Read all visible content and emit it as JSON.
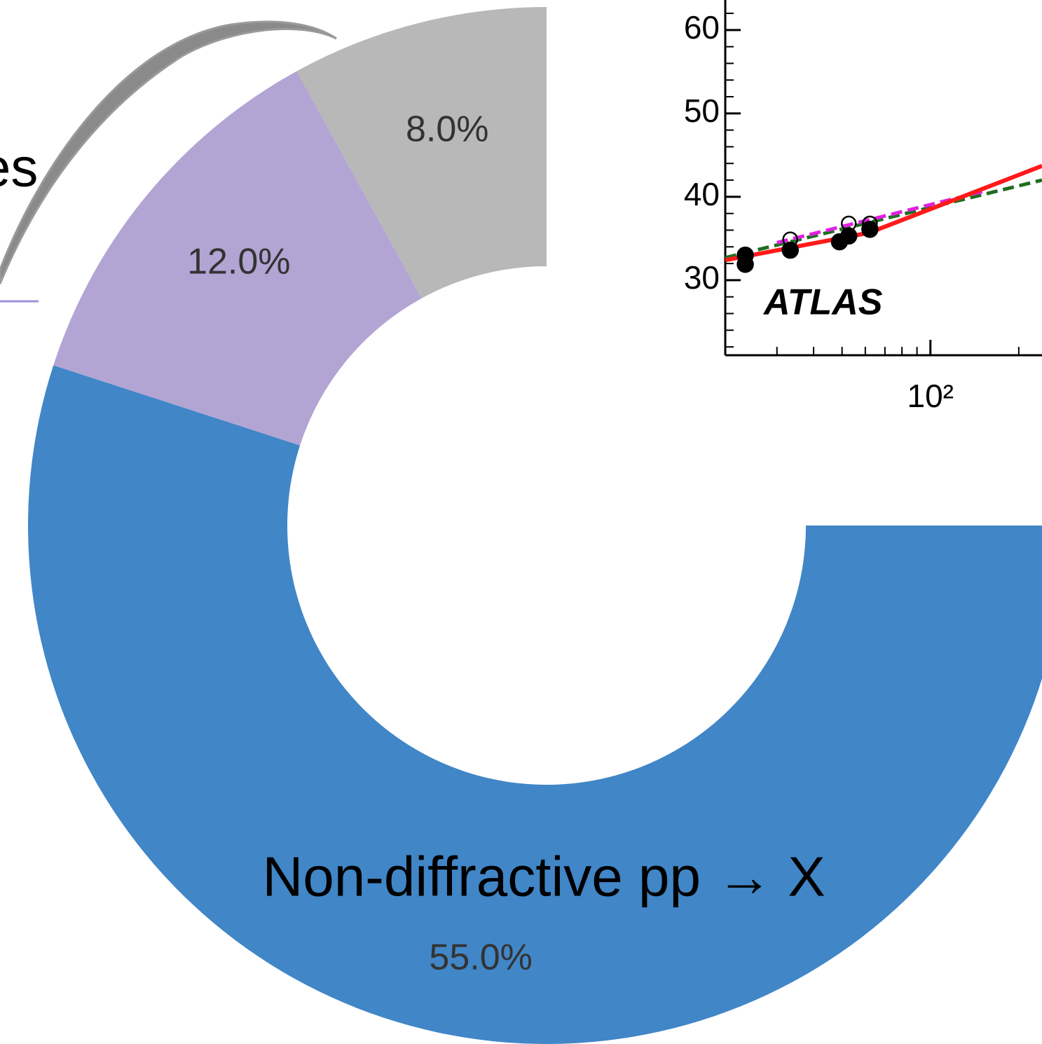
{
  "slide_text": "es",
  "chart_data": [
    {
      "type": "donut",
      "categories": [
        "Non-diffractive pp → X",
        null,
        null
      ],
      "values": [
        55,
        12,
        8
      ],
      "value_labels": [
        "55.0%",
        "12.0%",
        "8.0%"
      ],
      "colors": [
        "#4186c7",
        "#b2a5d4",
        "#b8b8b8"
      ]
    },
    {
      "type": "line",
      "annotation": "ATLAS",
      "xscale": "log",
      "xlim": [
        20,
        240
      ],
      "ylim": [
        21,
        63.6
      ],
      "xticks": [
        {
          "value": 100,
          "label": "10²"
        }
      ],
      "xminorticks": [
        30,
        40,
        50,
        60,
        70,
        80,
        90,
        200
      ],
      "yticks": [
        30,
        40,
        50,
        60
      ],
      "yminorticks": [
        22,
        24,
        26,
        28,
        32,
        34,
        36,
        38,
        42,
        44,
        46,
        48,
        52,
        54,
        56,
        58,
        62
      ],
      "series": [
        {
          "color": "#1f6e1f",
          "dash": true,
          "marker": null,
          "x": [
            20,
            240
          ],
          "y": [
            32.7,
            42.0
          ]
        },
        {
          "color": "#e020e0",
          "dash": true,
          "marker": null,
          "x": [
            30,
            150
          ],
          "y": [
            34.5,
            40.6
          ]
        },
        {
          "color": "#ff1a1a",
          "dash": false,
          "marker": null,
          "x": [
            20,
            62,
            240
          ],
          "y": [
            32.4,
            35.7,
            43.7
          ]
        },
        {
          "color": "#000000",
          "dash": false,
          "marker": "open",
          "x": [
            33.3,
            52.7,
            62.2
          ],
          "y": [
            34.9,
            36.8,
            36.8
          ]
        },
        {
          "color": "#000000",
          "dash": false,
          "marker": "filled",
          "x": [
            23.4,
            23.4,
            33.3,
            49,
            52.7,
            62.2
          ],
          "y": [
            33.0,
            31.9,
            33.6,
            34.6,
            35.3,
            36.1
          ]
        }
      ]
    }
  ]
}
